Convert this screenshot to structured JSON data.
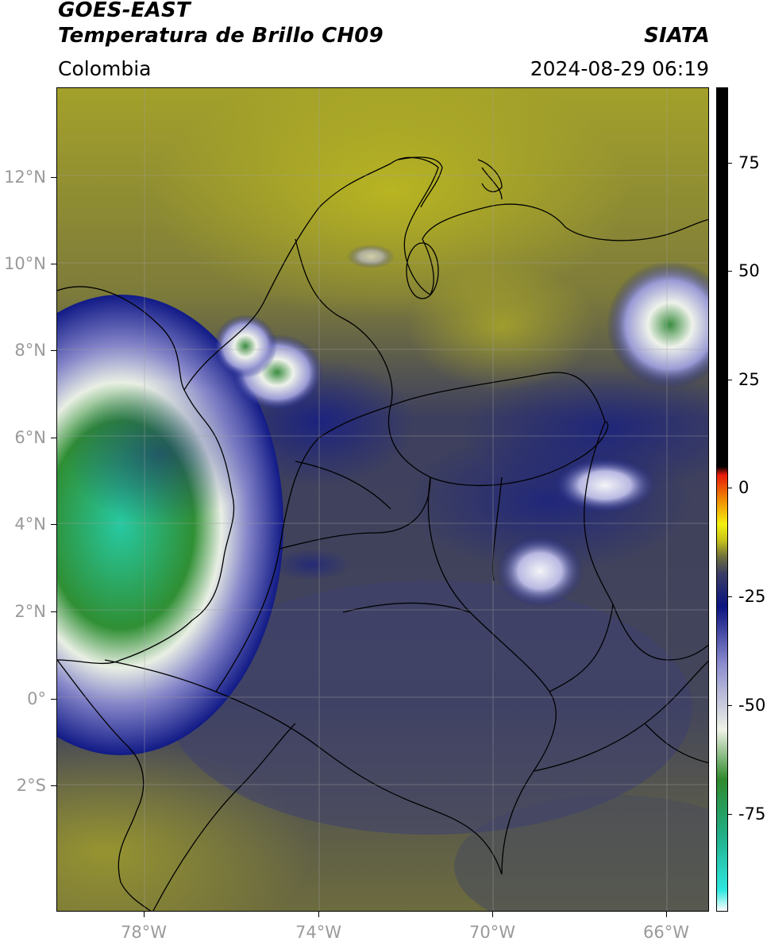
{
  "header": {
    "title_line1": "GOES-EAST",
    "title_line2": "Temperatura de Brillo CH09",
    "region": "Colombia",
    "source": "SIATA",
    "timestamp": "2024-08-29 06:19"
  },
  "map": {
    "lat_labels": [
      "12°N",
      "10°N",
      "8°N",
      "6°N",
      "4°N",
      "2°N",
      "0°",
      "2°S"
    ],
    "lon_labels": [
      "78°W",
      "74°W",
      "70°W",
      "66°W"
    ]
  },
  "colorbar": {
    "labels": [
      "75",
      "50",
      "25",
      "0",
      "-25",
      "-50",
      "-75"
    ],
    "stops": [
      "#ffffff",
      "#2ee8e0",
      "#21b08a",
      "#2f8a2c",
      "#eef2e6",
      "#8c8ccf",
      "#0c1480",
      "#3a3d66",
      "#6e6e3c",
      "#c4c21a",
      "#f4f010",
      "#f08a00",
      "#e81a0a",
      "#000000"
    ]
  }
}
